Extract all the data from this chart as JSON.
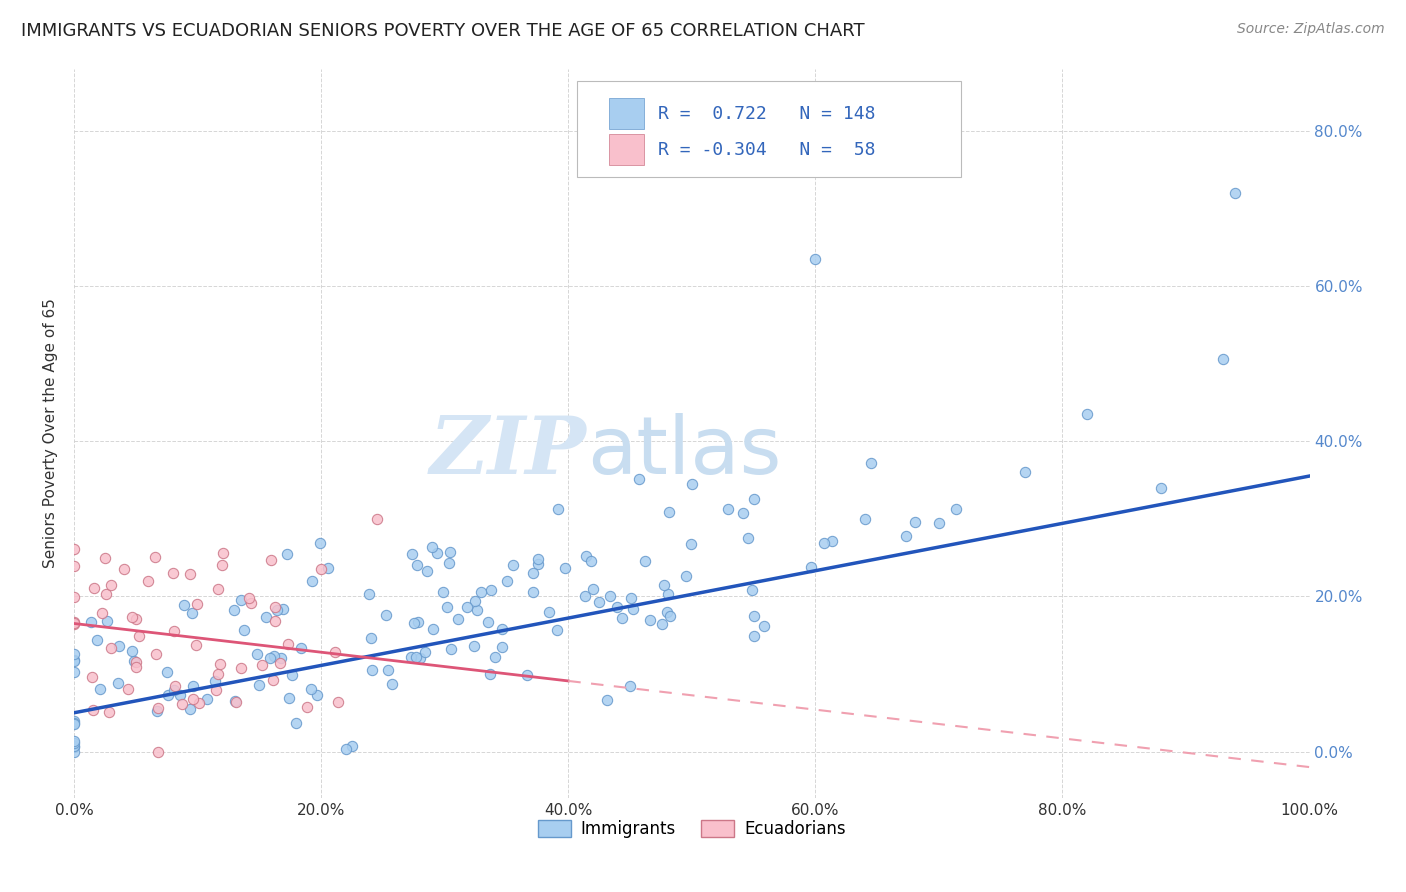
{
  "title": "IMMIGRANTS VS ECUADORIAN SENIORS POVERTY OVER THE AGE OF 65 CORRELATION CHART",
  "source": "Source: ZipAtlas.com",
  "ylabel": "Seniors Poverty Over the Age of 65",
  "watermark_zip": "ZIP",
  "watermark_atlas": "atlas",
  "xlim": [
    0.0,
    1.0
  ],
  "ylim": [
    -0.06,
    0.88
  ],
  "xticks": [
    0.0,
    0.2,
    0.4,
    0.6,
    0.8,
    1.0
  ],
  "xticklabels": [
    "0.0%",
    "20.0%",
    "40.0%",
    "60.0%",
    "80.0%",
    "100.0%"
  ],
  "yticks": [
    0.0,
    0.2,
    0.4,
    0.6,
    0.8
  ],
  "yticklabels": [
    "0.0%",
    "20.0%",
    "40.0%",
    "60.0%",
    "80.0%"
  ],
  "immigrants_color": "#a8cef0",
  "immigrants_edge_color": "#6699cc",
  "ecuadorians_color": "#f9c0cc",
  "ecuadorians_edge_color": "#cc7788",
  "immigrants_line_color": "#2255bb",
  "ecuadorians_line_solid_color": "#dd5577",
  "ecuadorians_line_dash_color": "#f0a0b0",
  "immigrants_R": 0.722,
  "immigrants_N": 148,
  "ecuadorians_R": -0.304,
  "ecuadorians_N": 58,
  "legend_immigrants_label": "Immigrants",
  "legend_ecuadorians_label": "Ecuadorians",
  "title_fontsize": 13,
  "axis_label_fontsize": 11,
  "tick_fontsize": 11,
  "legend_fontsize": 12,
  "source_fontsize": 10,
  "grid_color": "#cccccc",
  "background_color": "#ffffff",
  "watermark_color": "#d5e5f5",
  "watermark_fontsize_zip": 58,
  "watermark_fontsize_atlas": 58,
  "right_ytick_color": "#5588cc",
  "right_ytick_fontsize": 11,
  "stats_color": "#3366bb",
  "stats_fontsize": 13
}
